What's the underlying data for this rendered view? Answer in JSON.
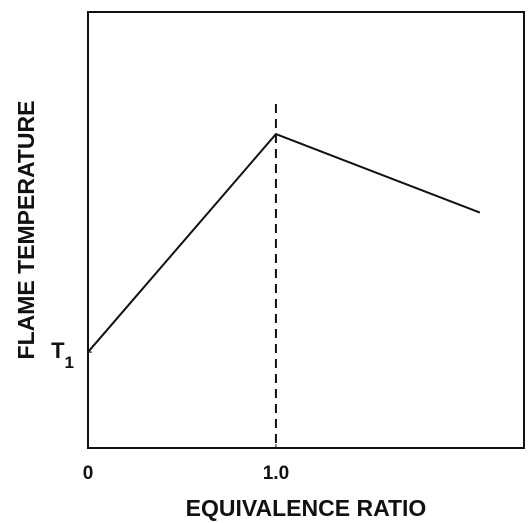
{
  "chart_data": {
    "type": "line",
    "xlabel": "EQUIVALENCE RATIO",
    "ylabel": "FLAME TEMPERATURE",
    "x": [
      0,
      1.0,
      2.085
    ],
    "series": [
      {
        "color": "#111111",
        "values": [
          22,
          72,
          54
        ]
      }
    ],
    "xlim": [
      0,
      2.32
    ],
    "ylim": [
      0,
      100
    ],
    "xticks": [
      0,
      {
        "value": 1,
        "label": "1.0"
      }
    ],
    "yticks": [
      {
        "value": 22,
        "label": "T1"
      }
    ],
    "vline": 1,
    "grid": false
  }
}
